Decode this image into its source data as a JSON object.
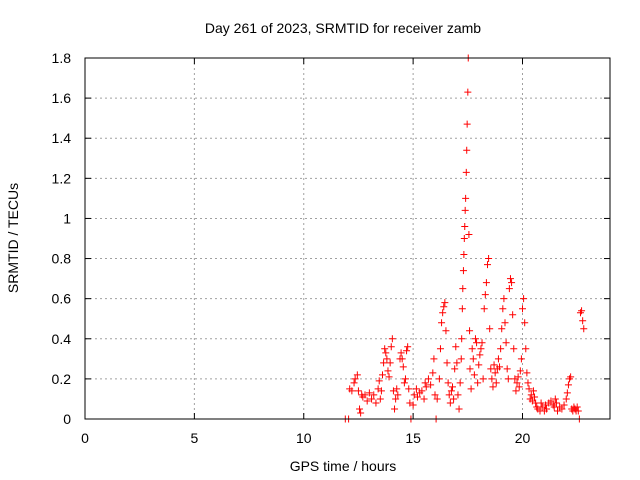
{
  "chart_data": {
    "type": "scatter",
    "title": "Day 261 of 2023, SRMTID for receiver zamb",
    "xlabel": "GPS time / hours",
    "ylabel": "SRMTID / TECUs",
    "xlim": [
      0,
      24
    ],
    "ylim": [
      0,
      1.8
    ],
    "xticks": [
      0,
      5,
      10,
      15,
      20
    ],
    "yticks": [
      0,
      0.2,
      0.4,
      0.6,
      0.8,
      1,
      1.2,
      1.4,
      1.6,
      1.8
    ],
    "xtick_labels": [
      "0",
      "5",
      "10",
      "15",
      "20"
    ],
    "ytick_labels": [
      "0",
      "0.2",
      "0.4",
      "0.6",
      "0.8",
      "1",
      "1.2",
      "1.4",
      "1.6",
      "1.8"
    ],
    "grid": true,
    "marker": "+",
    "marker_color": "#ff0000",
    "points": [
      [
        11.9,
        0.0
      ],
      [
        12.05,
        0.0
      ],
      [
        12.1,
        0.15
      ],
      [
        12.2,
        0.14
      ],
      [
        12.3,
        0.18
      ],
      [
        12.35,
        0.2
      ],
      [
        12.45,
        0.22
      ],
      [
        12.5,
        0.14
      ],
      [
        12.55,
        0.05
      ],
      [
        12.6,
        0.03
      ],
      [
        12.65,
        0.12
      ],
      [
        12.7,
        0.11
      ],
      [
        12.8,
        0.12
      ],
      [
        12.9,
        0.09
      ],
      [
        13.0,
        0.13
      ],
      [
        13.1,
        0.1
      ],
      [
        13.2,
        0.12
      ],
      [
        13.3,
        0.08
      ],
      [
        13.4,
        0.15
      ],
      [
        13.45,
        0.19
      ],
      [
        13.5,
        0.1
      ],
      [
        13.55,
        0.14
      ],
      [
        13.6,
        0.22
      ],
      [
        13.65,
        0.28
      ],
      [
        13.7,
        0.35
      ],
      [
        13.75,
        0.33
      ],
      [
        13.8,
        0.3
      ],
      [
        13.85,
        0.24
      ],
      [
        13.9,
        0.21
      ],
      [
        13.95,
        0.28
      ],
      [
        14.0,
        0.36
      ],
      [
        14.05,
        0.4
      ],
      [
        14.1,
        0.14
      ],
      [
        14.15,
        0.05
      ],
      [
        14.2,
        0.1
      ],
      [
        14.25,
        0.15
      ],
      [
        14.3,
        0.12
      ],
      [
        14.4,
        0.3
      ],
      [
        14.45,
        0.33
      ],
      [
        14.5,
        0.3
      ],
      [
        14.55,
        0.26
      ],
      [
        14.6,
        0.18
      ],
      [
        14.65,
        0.2
      ],
      [
        14.7,
        0.34
      ],
      [
        14.75,
        0.36
      ],
      [
        14.8,
        0.15
      ],
      [
        14.85,
        0.08
      ],
      [
        14.9,
        0.0
      ],
      [
        15.0,
        0.07
      ],
      [
        15.05,
        0.12
      ],
      [
        15.15,
        0.15
      ],
      [
        15.2,
        0.11
      ],
      [
        15.3,
        0.13
      ],
      [
        15.4,
        0.14
      ],
      [
        15.5,
        0.1
      ],
      [
        15.55,
        0.18
      ],
      [
        15.6,
        0.16
      ],
      [
        15.7,
        0.2
      ],
      [
        15.8,
        0.17
      ],
      [
        15.9,
        0.23
      ],
      [
        15.95,
        0.3
      ],
      [
        16.0,
        0.12
      ],
      [
        16.05,
        0.0
      ],
      [
        16.1,
        0.1
      ],
      [
        16.2,
        0.2
      ],
      [
        16.25,
        0.35
      ],
      [
        16.3,
        0.48
      ],
      [
        16.35,
        0.53
      ],
      [
        16.4,
        0.56
      ],
      [
        16.45,
        0.58
      ],
      [
        16.5,
        0.44
      ],
      [
        16.55,
        0.28
      ],
      [
        16.6,
        0.18
      ],
      [
        16.65,
        0.12
      ],
      [
        16.7,
        0.08
      ],
      [
        16.75,
        0.14
      ],
      [
        16.8,
        0.16
      ],
      [
        16.85,
        0.1
      ],
      [
        16.9,
        0.25
      ],
      [
        16.95,
        0.36
      ],
      [
        17.0,
        0.28
      ],
      [
        17.05,
        0.12
      ],
      [
        17.1,
        0.05
      ],
      [
        17.15,
        0.18
      ],
      [
        17.2,
        0.3
      ],
      [
        17.22,
        0.4
      ],
      [
        17.25,
        0.55
      ],
      [
        17.27,
        0.65
      ],
      [
        17.3,
        0.74
      ],
      [
        17.32,
        0.82
      ],
      [
        17.34,
        0.9
      ],
      [
        17.36,
        0.96
      ],
      [
        17.38,
        1.04
      ],
      [
        17.4,
        1.1
      ],
      [
        17.43,
        1.23
      ],
      [
        17.45,
        1.34
      ],
      [
        17.47,
        1.47
      ],
      [
        17.5,
        1.63
      ],
      [
        17.52,
        1.8
      ],
      [
        17.55,
        0.92
      ],
      [
        17.58,
        0.44
      ],
      [
        17.6,
        0.25
      ],
      [
        17.65,
        0.15
      ],
      [
        17.7,
        0.35
      ],
      [
        17.75,
        0.3
      ],
      [
        17.8,
        0.22
      ],
      [
        17.85,
        0.4
      ],
      [
        17.9,
        0.38
      ],
      [
        17.95,
        0.18
      ],
      [
        18.0,
        0.27
      ],
      [
        18.05,
        0.32
      ],
      [
        18.1,
        0.35
      ],
      [
        18.15,
        0.38
      ],
      [
        18.2,
        0.2
      ],
      [
        18.25,
        0.55
      ],
      [
        18.3,
        0.62
      ],
      [
        18.35,
        0.68
      ],
      [
        18.4,
        0.77
      ],
      [
        18.45,
        0.8
      ],
      [
        18.5,
        0.45
      ],
      [
        18.55,
        0.25
      ],
      [
        18.6,
        0.2
      ],
      [
        18.65,
        0.16
      ],
      [
        18.7,
        0.27
      ],
      [
        18.75,
        0.23
      ],
      [
        18.8,
        0.18
      ],
      [
        18.85,
        0.25
      ],
      [
        18.9,
        0.3
      ],
      [
        18.95,
        0.26
      ],
      [
        19.0,
        0.35
      ],
      [
        19.05,
        0.45
      ],
      [
        19.1,
        0.55
      ],
      [
        19.15,
        0.6
      ],
      [
        19.2,
        0.48
      ],
      [
        19.25,
        0.38
      ],
      [
        19.3,
        0.25
      ],
      [
        19.35,
        0.2
      ],
      [
        19.4,
        0.65
      ],
      [
        19.45,
        0.7
      ],
      [
        19.5,
        0.68
      ],
      [
        19.55,
        0.52
      ],
      [
        19.6,
        0.35
      ],
      [
        19.65,
        0.2
      ],
      [
        19.7,
        0.14
      ],
      [
        19.75,
        0.18
      ],
      [
        19.8,
        0.21
      ],
      [
        19.85,
        0.16
      ],
      [
        19.9,
        0.24
      ],
      [
        19.95,
        0.3
      ],
      [
        20.0,
        0.55
      ],
      [
        20.05,
        0.6
      ],
      [
        20.1,
        0.48
      ],
      [
        20.15,
        0.35
      ],
      [
        20.2,
        0.23
      ],
      [
        20.25,
        0.18
      ],
      [
        20.3,
        0.15
      ],
      [
        20.35,
        0.1
      ],
      [
        20.4,
        0.12
      ],
      [
        20.45,
        0.09
      ],
      [
        20.5,
        0.14
      ],
      [
        20.55,
        0.11
      ],
      [
        20.6,
        0.08
      ],
      [
        20.65,
        0.06
      ],
      [
        20.7,
        0.05
      ],
      [
        20.8,
        0.04
      ],
      [
        20.85,
        0.08
      ],
      [
        20.9,
        0.06
      ],
      [
        21.0,
        0.04
      ],
      [
        21.05,
        0.07
      ],
      [
        21.1,
        0.05
      ],
      [
        21.2,
        0.08
      ],
      [
        21.3,
        0.09
      ],
      [
        21.4,
        0.07
      ],
      [
        21.45,
        0.06
      ],
      [
        21.5,
        0.1
      ],
      [
        21.55,
        0.08
      ],
      [
        21.6,
        0.04
      ],
      [
        21.7,
        0.06
      ],
      [
        21.8,
        0.05
      ],
      [
        21.9,
        0.07
      ],
      [
        22.0,
        0.1
      ],
      [
        22.05,
        0.13
      ],
      [
        22.1,
        0.17
      ],
      [
        22.15,
        0.2
      ],
      [
        22.2,
        0.21
      ],
      [
        22.25,
        0.05
      ],
      [
        22.3,
        0.04
      ],
      [
        22.35,
        0.06
      ],
      [
        22.4,
        0.05
      ],
      [
        22.45,
        0.04
      ],
      [
        22.5,
        0.06
      ],
      [
        22.55,
        0.04
      ],
      [
        22.6,
        0.0
      ],
      [
        22.65,
        0.53
      ],
      [
        22.7,
        0.54
      ],
      [
        22.75,
        0.49
      ],
      [
        22.8,
        0.45
      ]
    ]
  }
}
